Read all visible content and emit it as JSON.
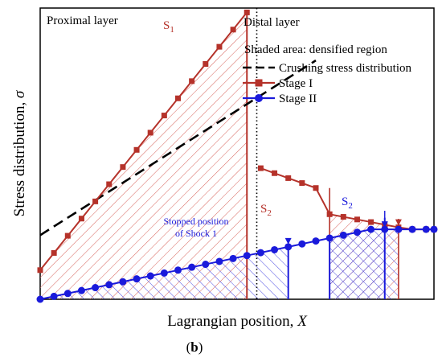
{
  "chart_data": {
    "type": "line",
    "xlabel": "Lagrangian position, ",
    "xlabel_var": "X",
    "ylabel": "Stress distribution, ",
    "ylabel_var": "σ",
    "xlim": [
      0,
      100
    ],
    "ylim": [
      0,
      100
    ],
    "grid": false,
    "legend_position": "top-right",
    "legend_title": "Shaded area: densified region",
    "legend": [
      {
        "name": "Crushing stress distribution",
        "color": "#000000",
        "style": "dashed"
      },
      {
        "name": "Stage I",
        "color": "#b5322a",
        "marker": "square"
      },
      {
        "name": "Stage II",
        "color": "#1a1adb",
        "marker": "circle"
      }
    ],
    "region_labels": {
      "proximal": "Proximal layer",
      "distal": "Distal layer"
    },
    "layer_boundary_x": 55,
    "annotations": {
      "s1_main": "S",
      "s1_sub": "1",
      "s2a_main": "S",
      "s2a_sub": "2",
      "s2b_main": "S",
      "s2b_sub": "2",
      "stopped_line1": "Stopped position",
      "stopped_line2": "of Shock 1"
    },
    "panel_label_open": "(",
    "panel_label": "b",
    "panel_label_close": ")",
    "series": [
      {
        "name": "Crushing stress distribution",
        "x": [
          0,
          70
        ],
        "y": [
          22,
          82
        ]
      },
      {
        "name": "Stage I",
        "x": [
          0,
          3.5,
          7,
          10.5,
          14,
          17.5,
          21,
          24.5,
          28,
          31.5,
          35,
          38.5,
          42,
          45.5,
          49,
          52.5,
          56,
          59.5,
          63,
          66.5,
          70,
          73.5,
          77,
          80.5,
          84,
          87.5,
          91,
          94.5,
          98,
          100
        ],
        "y": [
          10,
          15.9,
          21.8,
          27.7,
          33.6,
          39.5,
          45.4,
          51.3,
          57.2,
          63.1,
          69,
          74.9,
          80.8,
          86.7,
          92.6,
          98.5,
          45,
          43.3,
          41.6,
          39.9,
          38.2,
          29.2,
          28.3,
          27.4,
          26.5,
          25.6,
          24.7,
          24,
          24,
          24
        ]
      },
      {
        "name": "Stage II",
        "x": [
          0,
          3.5,
          7,
          10.5,
          14,
          17.5,
          21,
          24.5,
          28,
          31.5,
          35,
          38.5,
          42,
          45.5,
          49,
          52.5,
          56,
          59.5,
          63,
          66.5,
          70,
          73.5,
          77,
          80.5,
          84,
          87.5,
          91,
          94.5,
          98,
          100
        ],
        "y": [
          0,
          1,
          2,
          3,
          4,
          5,
          6,
          7,
          8,
          9,
          10,
          11,
          12,
          13,
          14,
          15,
          16,
          17,
          18,
          19,
          20,
          21,
          22,
          23,
          24,
          24,
          24,
          24,
          24,
          24
        ]
      }
    ]
  }
}
